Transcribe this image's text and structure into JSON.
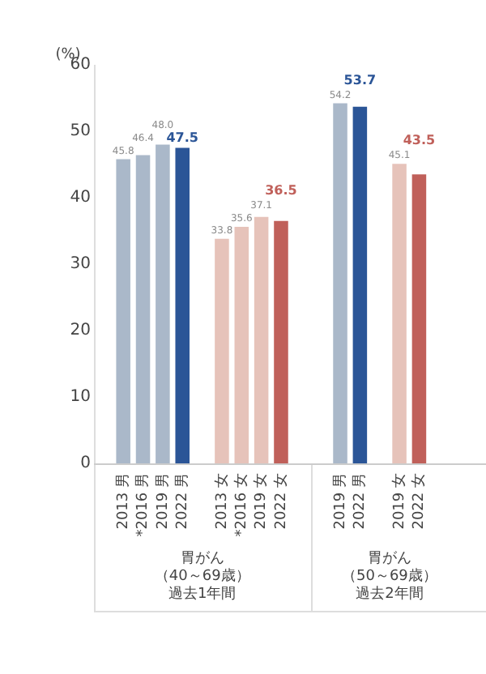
{
  "chart_data": {
    "type": "bar",
    "ylabel": "(%)",
    "categories": [
      "2013 男",
      "*2016 男",
      "2019 男",
      "2022 男",
      null,
      "2013 女",
      "*2016 女",
      "2019 女",
      "2022 女",
      null,
      null,
      "2019 男",
      "2022 男",
      null,
      "2019 女",
      "2022 女",
      null,
      null
    ],
    "values": [
      45.8,
      46.4,
      48.0,
      47.5,
      null,
      33.8,
      35.6,
      37.1,
      36.5,
      null,
      null,
      54.2,
      53.7,
      null,
      45.1,
      43.5,
      null,
      null
    ],
    "value_labels": [
      "45.8",
      "46.4",
      "48.0",
      "47.5",
      null,
      "33.8",
      "35.6",
      "37.1",
      "36.5",
      null,
      null,
      "54.2",
      "53.7",
      null,
      "45.1",
      "43.5",
      null,
      null
    ],
    "colors": [
      "#aab8c9",
      "#aab8c9",
      "#aab8c9",
      "#2b5597",
      "#aab8c9",
      "#e6c3ba",
      "#e6c3ba",
      "#e6c3ba",
      "#c0605a",
      "#e6c3ba",
      "#e6c3ba",
      "#aab8c9",
      "#2b5597",
      "#e6c3ba",
      "#e6c3ba",
      "#c0605a",
      "#e6c3ba",
      "#e6c3ba"
    ],
    "ylim": [
      0,
      60
    ],
    "yticks": [
      0,
      10,
      20,
      30,
      40,
      50,
      60
    ],
    "grid": false,
    "legend": false,
    "annotations": [
      "胃がん",
      "（40～69歳）",
      "過去1年間",
      "胃がん",
      "（50～69歳）",
      "過去2年間"
    ]
  }
}
